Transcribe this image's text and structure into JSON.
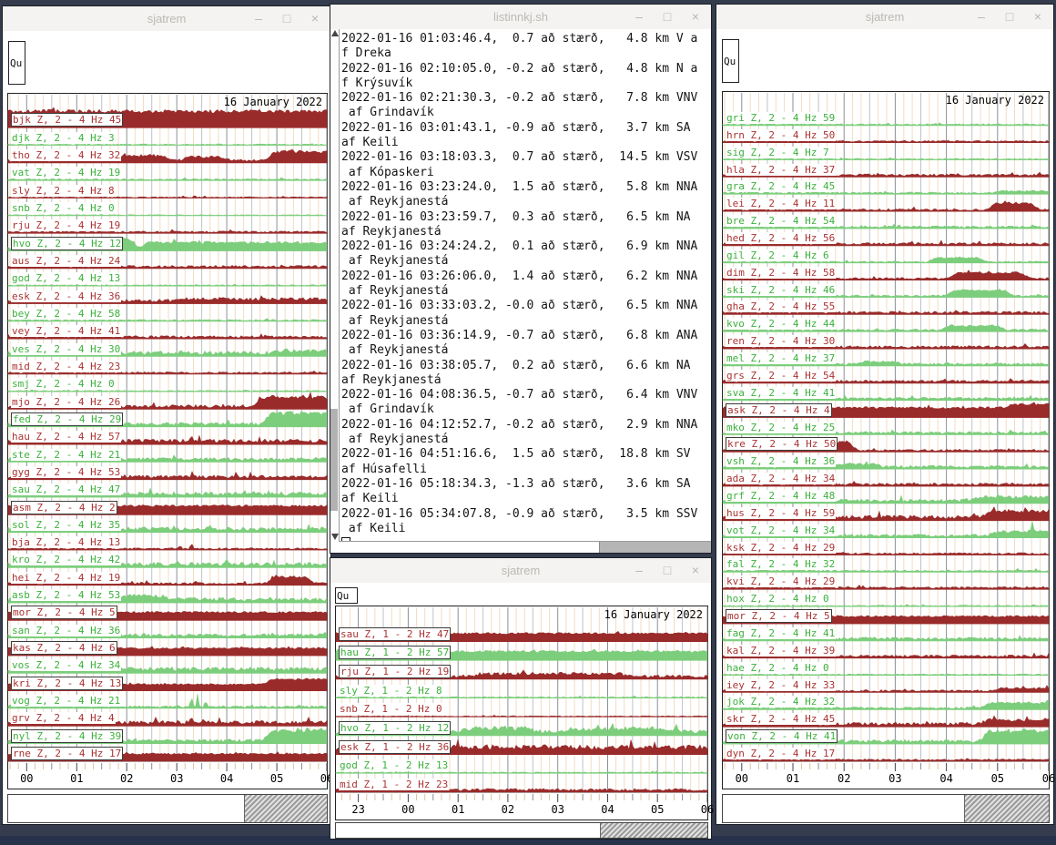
{
  "chrome": {
    "minimize": "–",
    "maximize": "□",
    "close": "×"
  },
  "colors": {
    "trace_red": "#9a2b2b",
    "trace_green": "#7cce7c",
    "label_red": "#ab3232",
    "label_green": "#3bb13b",
    "grid_hour": "#8f8f8f",
    "grid_half": "#c2c2c2",
    "grid_minor": "#f2dcc2",
    "tick_hour": "#444444",
    "tick_half": "#8a8a8a",
    "tick_minor": "#dfc4a0",
    "titlebar_bg": "#f4f3f1",
    "titlebar_fg": "#bcb9b5",
    "desktop": "#343c4d"
  },
  "windows": {
    "left": {
      "title": "sjatrem",
      "quit_label": "Qu",
      "date_label": "16 January 2022",
      "axis_hours": [
        "00",
        "01",
        "02",
        "03",
        "04",
        "05",
        "06"
      ],
      "scroll_thumb_start": 0.74,
      "channels": [
        {
          "label": "bjk Z, 2 - 4 Hz 45",
          "color": "red",
          "amp": 20,
          "sat": true,
          "boxed": true
        },
        {
          "label": "djk Z, 2 - 4 Hz 3",
          "color": "green",
          "amp": 1.5
        },
        {
          "label": "tho Z, 2 - 4 Hz 32",
          "color": "red",
          "amp": 4,
          "bumps": [
            [
              0.33,
              0.52,
              6
            ],
            [
              0.53,
              0.7,
              4
            ],
            [
              0.8,
              1.02,
              11
            ]
          ]
        },
        {
          "label": "vat Z, 2 - 4 Hz 19",
          "color": "green",
          "amp": 2
        },
        {
          "label": "sly Z, 2 - 4 Hz 8",
          "color": "red",
          "amp": 1.5
        },
        {
          "label": "snb Z, 2 - 4 Hz 0",
          "color": "green",
          "amp": 1.2
        },
        {
          "label": "rju Z, 2 - 4 Hz 19",
          "color": "red",
          "amp": 2.5
        },
        {
          "label": "hvo Z, 2 - 4 Hz 12",
          "color": "green",
          "amp": 3,
          "boxed": true,
          "bumps": [
            [
              0.22,
              0.42,
              13
            ],
            [
              0.4,
              1.02,
              8
            ]
          ]
        },
        {
          "label": "aus Z, 2 - 4 Hz 24",
          "color": "red",
          "amp": 3.5
        },
        {
          "label": "god Z, 2 - 4 Hz 13",
          "color": "green",
          "amp": 1.5
        },
        {
          "label": "esk Z, 2 - 4 Hz 36",
          "color": "red",
          "amp": 5,
          "bumps": [
            [
              0.5,
              1.02,
              2
            ]
          ]
        },
        {
          "label": "bey Z, 2 - 4 Hz 58",
          "color": "green",
          "amp": 2
        },
        {
          "label": "vey Z, 2 - 4 Hz 41",
          "color": "red",
          "amp": 3.5
        },
        {
          "label": "ves Z, 2 - 4 Hz 30",
          "color": "green",
          "amp": 6,
          "bumps": [
            [
              0.82,
              1.02,
              3
            ]
          ]
        },
        {
          "label": "mid Z, 2 - 4 Hz 23",
          "color": "red",
          "amp": 2.5
        },
        {
          "label": "smj Z, 2 - 4 Hz 0",
          "color": "green",
          "amp": 1.5
        },
        {
          "label": "mjo Z, 2 - 4 Hz 26",
          "color": "red",
          "amp": 5,
          "bumps": [
            [
              0.76,
              1.02,
              11
            ]
          ]
        },
        {
          "label": "fed Z, 2 - 4 Hz 29",
          "color": "green",
          "amp": 5,
          "boxed": true,
          "bumps": [
            [
              0.79,
              1.02,
              13
            ]
          ]
        },
        {
          "label": "hau Z, 2 - 4 Hz 57",
          "color": "red",
          "amp": 6,
          "spikes": [
            [
              0.575,
              8
            ],
            [
              0.6,
              7
            ]
          ]
        },
        {
          "label": "ste Z, 2 - 4 Hz 21",
          "color": "green",
          "amp": 5
        },
        {
          "label": "gyg Z, 2 - 4 Hz 53",
          "color": "red",
          "amp": 5,
          "spikes": [
            [
              0.578,
              6
            ]
          ]
        },
        {
          "label": "sau Z, 2 - 4 Hz 47",
          "color": "green",
          "amp": 6
        },
        {
          "label": "asm Z, 2 - 4 Hz 2",
          "color": "red",
          "amp": 11,
          "sat": true,
          "boxed": true
        },
        {
          "label": "sol Z, 2 - 4 Hz 35",
          "color": "green",
          "amp": 6
        },
        {
          "label": "bja Z, 2 - 4 Hz 13",
          "color": "red",
          "amp": 2.5,
          "spikes": [
            [
              0.54,
              5
            ],
            [
              0.575,
              6
            ]
          ]
        },
        {
          "label": "kro Z, 2 - 4 Hz 42",
          "color": "green",
          "amp": 6
        },
        {
          "label": "hei Z, 2 - 4 Hz 19",
          "color": "red",
          "amp": 3,
          "bumps": [
            [
              0.8,
              0.97,
              8
            ]
          ]
        },
        {
          "label": "asb Z, 2 - 4 Hz 53",
          "color": "green",
          "amp": 6,
          "bumps": [
            [
              0.3,
              0.52,
              4
            ]
          ]
        },
        {
          "label": "mor Z, 2 - 4 Hz 5",
          "color": "red",
          "amp": 10,
          "sat": true,
          "boxed": true
        },
        {
          "label": "san Z, 2 - 4 Hz 36",
          "color": "green",
          "amp": 5
        },
        {
          "label": "kas Z, 2 - 4 Hz 6",
          "color": "red",
          "amp": 9,
          "sat": true,
          "boxed": true
        },
        {
          "label": "vos Z, 2 - 4 Hz 34",
          "color": "green",
          "amp": 7
        },
        {
          "label": "kri Z, 2 - 4 Hz 13",
          "color": "red",
          "amp": 8,
          "sat": true,
          "boxed": true,
          "bumps": [
            [
              0.79,
              1.02,
              6
            ]
          ]
        },
        {
          "label": "vog Z, 2 - 4 Hz 21",
          "color": "green",
          "amp": 3,
          "spikes": [
            [
              0.575,
              13
            ],
            [
              0.595,
              15
            ],
            [
              0.62,
              7
            ]
          ]
        },
        {
          "label": "grv Z, 2 - 4 Hz 4",
          "color": "red",
          "amp": 6,
          "spikes": [
            [
              0.575,
              8
            ],
            [
              0.61,
              7
            ]
          ]
        },
        {
          "label": "nyl Z, 2 - 4 Hz 39",
          "color": "green",
          "amp": 5,
          "boxed": true,
          "bumps": [
            [
              0.79,
              1.02,
              12
            ]
          ]
        },
        {
          "label": "rne Z, 2 - 4 Hz 17",
          "color": "red",
          "amp": 9,
          "sat": true,
          "boxed": true
        }
      ]
    },
    "list": {
      "title": "listinnkj.sh",
      "lines": [
        "2022-01-16 01:03:46.4,  0.7 að stærð,   4.8 km V a",
        "f Dreka",
        "2022-01-16 02:10:05.0, -0.2 að stærð,   4.8 km N a",
        "f Krýsuvík",
        "2022-01-16 02:21:30.3, -0.2 að stærð,   7.8 km VNV",
        " af Grindavík",
        "2022-01-16 03:01:43.1, -0.9 að stærð,   3.7 km SA",
        "af Keili",
        "2022-01-16 03:18:03.3,  0.7 að stærð,  14.5 km VSV",
        " af Kópaskeri",
        "2022-01-16 03:23:24.0,  1.5 að stærð,   5.8 km NNA",
        " af Reykjanestá",
        "2022-01-16 03:23:59.7,  0.3 að stærð,   6.5 km NA",
        "af Reykjanestá",
        "2022-01-16 03:24:24.2,  0.1 að stærð,   6.9 km NNA",
        " af Reykjanestá",
        "2022-01-16 03:26:06.0,  1.4 að stærð,   6.2 km NNA",
        " af Reykjanestá",
        "2022-01-16 03:33:03.2, -0.0 að stærð,   6.5 km NNA",
        " af Reykjanestá",
        "2022-01-16 03:36:14.9, -0.7 að stærð,   6.8 km ANA",
        " af Reykjanestá",
        "2022-01-16 03:38:05.7,  0.2 að stærð,   6.6 km NA",
        "af Reykjanestá",
        "2022-01-16 04:08:36.5, -0.7 að stærð,   6.4 km VNV",
        " af Grindavík",
        "2022-01-16 04:12:52.7, -0.2 að stærð,   2.9 km NNA",
        " af Reykjanestá",
        "2022-01-16 04:51:16.6,  1.5 að stærð,  18.8 km SV",
        "af Húsafelli",
        "2022-01-16 05:18:34.3, -1.3 að stærð,   3.6 km SA",
        "af Keili",
        "2022-01-16 05:34:07.8, -0.9 að stærð,   3.5 km SSV",
        " af Keili"
      ]
    },
    "bottom": {
      "title": "sjatrem",
      "quit_label": "Qu",
      "date_label": "16 January 2022",
      "axis_hours": [
        "23",
        "00",
        "01",
        "02",
        "03",
        "04",
        "05",
        "06"
      ],
      "scroll_thumb_start": 0.71,
      "channels": [
        {
          "label": "sau Z, 1 - 2 Hz 47",
          "color": "red",
          "amp": 10,
          "sat": true,
          "boxed": true
        },
        {
          "label": "hau Z, 1 - 2 Hz 57",
          "color": "green",
          "amp": 11,
          "sat": true,
          "boxed": true
        },
        {
          "label": "rju Z, 1 - 2 Hz 19",
          "color": "red",
          "amp": 5,
          "boxed": true,
          "bumps": [
            [
              0.35,
              0.8,
              3
            ]
          ]
        },
        {
          "label": "sly Z, 1 - 2 Hz 8",
          "color": "green",
          "amp": 1.5
        },
        {
          "label": "snb Z, 1 - 2 Hz 0",
          "color": "red",
          "amp": 1.2
        },
        {
          "label": "hvo Z, 1 - 2 Hz 12",
          "color": "green",
          "amp": 7,
          "boxed": true,
          "bumps": [
            [
              0.32,
              0.55,
              4
            ],
            [
              0.6,
              0.95,
              3
            ]
          ]
        },
        {
          "label": "esk Z, 1 - 2 Hz 36",
          "color": "red",
          "amp": 8,
          "boxed": true,
          "bumps": [
            [
              0.25,
              1.02,
              3
            ]
          ]
        },
        {
          "label": "god Z, 1 - 2 Hz 13",
          "color": "green",
          "amp": 1.5
        },
        {
          "label": "mid Z, 1 - 2 Hz 23",
          "color": "red",
          "amp": 4
        }
      ]
    },
    "right": {
      "title": "sjatrem",
      "quit_label": "Qu",
      "date_label": "16 January 2022",
      "axis_hours": [
        "00",
        "01",
        "02",
        "03",
        "04",
        "05",
        "06"
      ],
      "scroll_thumb_start": 0.74,
      "channels": [
        {
          "label": "gri Z, 2 - 4 Hz 59",
          "color": "green",
          "amp": 2
        },
        {
          "label": "hrn Z, 2 - 4 Hz 50",
          "color": "red",
          "amp": 2.5
        },
        {
          "label": "sig Z, 2 - 4 Hz 7",
          "color": "green",
          "amp": 1.5
        },
        {
          "label": "hla Z, 2 - 4 Hz 37",
          "color": "red",
          "amp": 3.5
        },
        {
          "label": "gra Z, 2 - 4 Hz 45",
          "color": "green",
          "amp": 2.5,
          "bumps": [
            [
              0.82,
              1.02,
              2
            ]
          ]
        },
        {
          "label": "lei Z, 2 - 4 Hz 11",
          "color": "red",
          "amp": 3,
          "bumps": [
            [
              0.8,
              0.98,
              8
            ]
          ]
        },
        {
          "label": "bre Z, 2 - 4 Hz 54",
          "color": "green",
          "amp": 3
        },
        {
          "label": "hed Z, 2 - 4 Hz 56",
          "color": "red",
          "amp": 3.5
        },
        {
          "label": "gil Z, 2 - 4 Hz 6",
          "color": "green",
          "amp": 2,
          "bumps": [
            [
              0.62,
              0.82,
              5
            ]
          ]
        },
        {
          "label": "dim Z, 2 - 4 Hz 58",
          "color": "red",
          "amp": 3,
          "bumps": [
            [
              0.68,
              0.95,
              7
            ]
          ]
        },
        {
          "label": "ski Z, 2 - 4 Hz 46",
          "color": "green",
          "amp": 2.5,
          "bumps": [
            [
              0.67,
              0.9,
              7
            ]
          ]
        },
        {
          "label": "gha Z, 2 - 4 Hz 55",
          "color": "red",
          "amp": 3.5
        },
        {
          "label": "kvo Z, 2 - 4 Hz 44",
          "color": "green",
          "amp": 3,
          "bumps": [
            [
              0.66,
              0.88,
              5
            ]
          ]
        },
        {
          "label": "ren Z, 2 - 4 Hz 30",
          "color": "red",
          "amp": 3.5
        },
        {
          "label": "mel Z, 2 - 4 Hz 37",
          "color": "green",
          "amp": 3.5,
          "bumps": [
            [
              0.4,
              0.56,
              3
            ]
          ]
        },
        {
          "label": "grs Z, 2 - 4 Hz 54",
          "color": "red",
          "amp": 3.5
        },
        {
          "label": "sva Z, 2 - 4 Hz 41",
          "color": "green",
          "amp": 3.5
        },
        {
          "label": "ask Z, 2 - 4 Hz 4",
          "color": "red",
          "amp": 12,
          "sat": true,
          "boxed": true,
          "bumps": [
            [
              0.85,
              1.02,
              4
            ]
          ]
        },
        {
          "label": "mko Z, 2 - 4 Hz 25",
          "color": "green",
          "amp": 3.5
        },
        {
          "label": "kre Z, 2 - 4 Hz 50",
          "color": "red",
          "amp": 3,
          "boxed": true,
          "bumps": [
            [
              0.29,
              0.42,
              10
            ]
          ]
        },
        {
          "label": "vsh Z, 2 - 4 Hz 36",
          "color": "green",
          "amp": 4,
          "bumps": [
            [
              0.3,
              0.5,
              3
            ]
          ]
        },
        {
          "label": "ada Z, 2 - 4 Hz 34",
          "color": "red",
          "amp": 3.5
        },
        {
          "label": "grf Z, 2 - 4 Hz 48",
          "color": "green",
          "amp": 5,
          "bumps": [
            [
              0.75,
              1.02,
              4
            ]
          ]
        },
        {
          "label": "hus Z, 2 - 4 Hz 59",
          "color": "red",
          "amp": 6,
          "bumps": [
            [
              0.78,
              1.02,
              7
            ]
          ]
        },
        {
          "label": "vot Z, 2 - 4 Hz 34",
          "color": "green",
          "amp": 4,
          "bumps": [
            [
              0.8,
              1.02,
              5
            ]
          ],
          "spikes": [
            [
              0.95,
              12
            ]
          ]
        },
        {
          "label": "ksk Z, 2 - 4 Hz 29",
          "color": "red",
          "amp": 2.5
        },
        {
          "label": "fal Z, 2 - 4 Hz 32",
          "color": "green",
          "amp": 2.5
        },
        {
          "label": "kvi Z, 2 - 4 Hz 29",
          "color": "red",
          "amp": 3
        },
        {
          "label": "hox Z, 2 - 4 Hz 0",
          "color": "green",
          "amp": 1.5
        },
        {
          "label": "mor Z, 2 - 4 Hz 5",
          "color": "red",
          "amp": 9,
          "sat": true,
          "boxed": true
        },
        {
          "label": "fag Z, 2 - 4 Hz 41",
          "color": "green",
          "amp": 4
        },
        {
          "label": "kal Z, 2 - 4 Hz 39",
          "color": "red",
          "amp": 3.5
        },
        {
          "label": "hae Z, 2 - 4 Hz 0",
          "color": "green",
          "amp": 1.5
        },
        {
          "label": "iey Z, 2 - 4 Hz 33",
          "color": "red",
          "amp": 3,
          "bumps": [
            [
              0.82,
              1.02,
              3
            ]
          ]
        },
        {
          "label": "jok Z, 2 - 4 Hz 32",
          "color": "green",
          "amp": 3,
          "bumps": [
            [
              0.78,
              1.02,
              6
            ]
          ]
        },
        {
          "label": "skr Z, 2 - 4 Hz 45",
          "color": "red",
          "amp": 5,
          "bumps": [
            [
              0.78,
              1.02,
              5
            ]
          ]
        },
        {
          "label": "von Z, 2 - 4 Hz 41",
          "color": "green",
          "amp": 5,
          "boxed": true,
          "bumps": [
            [
              0.78,
              1.02,
              12
            ]
          ]
        },
        {
          "label": "dyn Z, 2 - 4 Hz 17",
          "color": "red",
          "amp": 2.5
        }
      ]
    }
  }
}
